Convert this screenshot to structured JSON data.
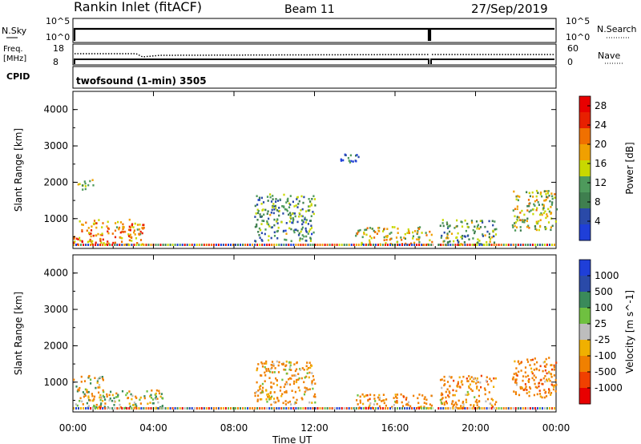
{
  "header": {
    "station": "Rankin Inlet (fitACF)",
    "beam": "Beam 11",
    "date": "27/Sep/2019"
  },
  "noise_panel": {
    "left_label": "N.Sky",
    "left_ticks": [
      "10^5",
      "10^0"
    ],
    "right_ticks": [
      "10^5",
      "10^0"
    ],
    "right_label": "N.Search"
  },
  "freq_panel": {
    "left_label_line1": "Freq.",
    "left_label_line2": "[MHz]",
    "left_ticks": [
      "18",
      "8"
    ],
    "right_ticks": [
      "60",
      "0"
    ],
    "right_label": "Nave"
  },
  "cpid_panel": {
    "label": "CPID",
    "program": "twofsound (1-min) 3505"
  },
  "colors": {
    "power_scale": [
      "#1f3fd8",
      "#2a4aa8",
      "#3f7f4f",
      "#4e9a5c",
      "#c8d800",
      "#f0a000",
      "#f07000",
      "#e82000",
      "#e80000"
    ],
    "velocity_scale": [
      "#1f3fd8",
      "#2a4aa8",
      "#3a8a5a",
      "#6fc040",
      "#bdbdbd",
      "#f0b000",
      "#f08000",
      "#f04000",
      "#e80000"
    ]
  },
  "chart_data": [
    {
      "type": "heatmap",
      "name": "power",
      "xlabel": "Time UT",
      "ylabel": "Slant Range [km]",
      "x_ticks": [
        "00:00",
        "04:00",
        "08:00",
        "12:00",
        "16:00",
        "20:00",
        "00:00"
      ],
      "xlim_hours": [
        0,
        24
      ],
      "ylim": [
        180,
        4500
      ],
      "y_ticks": [
        "1000",
        "2000",
        "3000",
        "4000"
      ],
      "colorbar": {
        "label": "Power [dB]",
        "ticks": [
          "4",
          "8",
          "12",
          "16",
          "20",
          "24",
          "28"
        ],
        "range": [
          0,
          30
        ]
      },
      "data_gap_hours": [
        17.9,
        18.1
      ],
      "features": [
        {
          "t_start": 0.0,
          "t_end": 3.5,
          "r_start": 300,
          "r_end": 1000,
          "level": 20
        },
        {
          "t_start": 0.2,
          "t_end": 1.0,
          "r_start": 1800,
          "r_end": 2100,
          "level": 12
        },
        {
          "t_start": 9.0,
          "t_end": 12.0,
          "r_start": 400,
          "r_end": 1700,
          "level": 10
        },
        {
          "t_start": 13.2,
          "t_end": 14.2,
          "r_start": 2500,
          "r_end": 2800,
          "level": 6
        },
        {
          "t_start": 14.0,
          "t_end": 17.8,
          "r_start": 300,
          "r_end": 800,
          "level": 16
        },
        {
          "t_start": 18.2,
          "t_end": 21.0,
          "r_start": 300,
          "r_end": 1000,
          "level": 12
        },
        {
          "t_start": 21.8,
          "t_end": 24.0,
          "r_start": 700,
          "r_end": 1800,
          "level": 14
        }
      ]
    },
    {
      "type": "heatmap",
      "name": "velocity",
      "xlabel": "Time UT",
      "ylabel": "Slant Range [km]",
      "x_ticks": [
        "00:00",
        "04:00",
        "08:00",
        "12:00",
        "16:00",
        "20:00",
        "00:00"
      ],
      "xlim_hours": [
        0,
        24
      ],
      "ylim": [
        180,
        4500
      ],
      "y_ticks": [
        "1000",
        "2000",
        "3000",
        "4000"
      ],
      "colorbar": {
        "label": "Velocity [m s^-1]",
        "ticks": [
          "1000",
          "500",
          "100",
          "25",
          "-25",
          "-100",
          "-500",
          "-1000"
        ]
      },
      "data_gap_hours": [
        17.9,
        18.1
      ],
      "features": [
        {
          "t_start": 0.0,
          "t_end": 1.5,
          "r_start": 300,
          "r_end": 1200,
          "level": -100
        },
        {
          "t_start": 1.5,
          "t_end": 4.5,
          "r_start": 300,
          "r_end": 800,
          "level": 0
        },
        {
          "t_start": 9.0,
          "t_end": 12.0,
          "r_start": 400,
          "r_end": 1600,
          "level": -200
        },
        {
          "t_start": 14.0,
          "t_end": 17.8,
          "r_start": 300,
          "r_end": 700,
          "level": -250
        },
        {
          "t_start": 18.2,
          "t_end": 21.0,
          "r_start": 300,
          "r_end": 1200,
          "level": -250
        },
        {
          "t_start": 21.8,
          "t_end": 24.0,
          "r_start": 600,
          "r_end": 1700,
          "level": -300
        }
      ]
    }
  ]
}
